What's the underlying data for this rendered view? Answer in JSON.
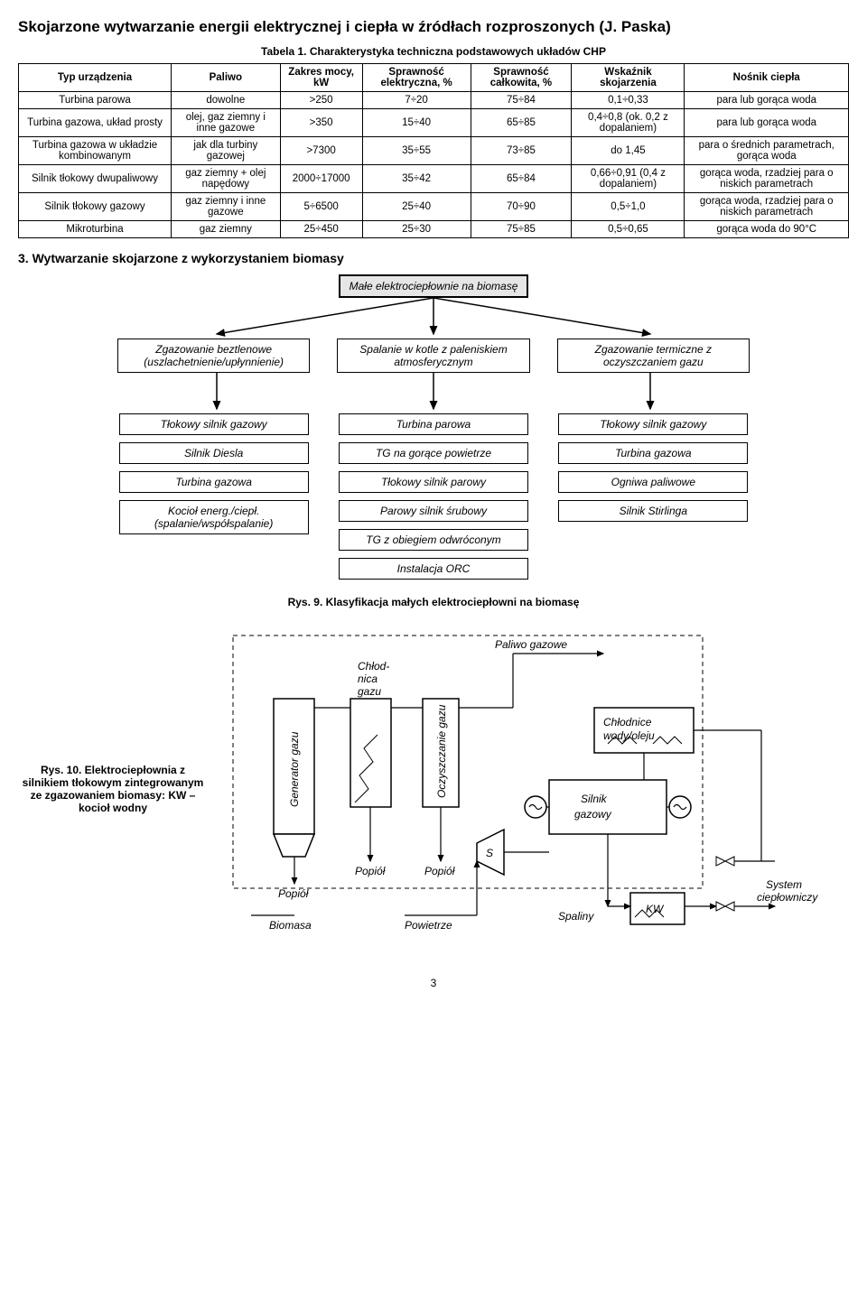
{
  "page": {
    "title": "Skojarzone wytwarzanie energii elektrycznej i ciepła w źródłach rozproszonych (J. Paska)",
    "section3": "3. Wytwarzanie skojarzone z wykorzystaniem biomasy",
    "pagenum": "3"
  },
  "table": {
    "caption": "Tabela 1. Charakterystyka techniczna podstawowych układów CHP",
    "headers": {
      "c1": "Typ urządzenia",
      "c2": "Paliwo",
      "c3": "Zakres mocy, kW",
      "c4": "Sprawność elektryczna, %",
      "c5": "Sprawność całkowita, %",
      "c6": "Wskaźnik skojarzenia",
      "c7": "Nośnik ciepła"
    },
    "rows": [
      {
        "c1": "Turbina parowa",
        "c2": "dowolne",
        "c3": ">250",
        "c4": "7÷20",
        "c5": "75÷84",
        "c6": "0,1÷0,33",
        "c7": "para lub gorąca woda"
      },
      {
        "c1": "Turbina gazowa, układ prosty",
        "c2": "olej, gaz ziemny i inne gazowe",
        "c3": ">350",
        "c4": "15÷40",
        "c5": "65÷85",
        "c6": "0,4÷0,8 (ok. 0,2 z dopalaniem)",
        "c7": "para lub gorąca woda"
      },
      {
        "c1": "Turbina gazowa w układzie kombinowanym",
        "c2": "jak dla turbiny gazowej",
        "c3": ">7300",
        "c4": "35÷55",
        "c5": "73÷85",
        "c6": "do 1,45",
        "c7": "para o średnich parametrach, gorąca woda"
      },
      {
        "c1": "Silnik tłokowy dwupaliwowy",
        "c2": "gaz ziemny + olej napędowy",
        "c3": "2000÷17000",
        "c4": "35÷42",
        "c5": "65÷84",
        "c6": "0,66÷0,91 (0,4 z dopalaniem)",
        "c7": "gorąca woda, rzadziej para o niskich parametrach"
      },
      {
        "c1": "Silnik tłokowy gazowy",
        "c2": "gaz ziemny i inne gazowe",
        "c3": "5÷6500",
        "c4": "25÷40",
        "c5": "70÷90",
        "c6": "0,5÷1,0",
        "c7": "gorąca woda, rzadziej para o niskich parametrach"
      },
      {
        "c1": "Mikroturbina",
        "c2": "gaz ziemny",
        "c3": "25÷450",
        "c4": "25÷30",
        "c5": "75÷85",
        "c6": "0,5÷0,65",
        "c7": "gorąca woda do 90°C"
      }
    ]
  },
  "fig9": {
    "caption": "Rys. 9. Klasyfikacja małych elektrociepłowni na biomasę",
    "top": "Małe elektrociepłownie na biomasę",
    "branch1": "Zgazowanie beztlenowe (uszlachetnienie/upłynnienie)",
    "branch2": "Spalanie w kotle z paleniskiem atmosferycznym",
    "branch3": "Zgazowanie termiczne z oczyszczaniem gazu",
    "col1": [
      "Tłokowy silnik gazowy",
      "Silnik Diesla",
      "Turbina gazowa",
      "Kocioł energ./ciepł. (spalanie/współspalanie)"
    ],
    "col2": [
      "Turbina parowa",
      "TG na gorące powietrze",
      "Tłokowy silnik parowy",
      "Parowy silnik śrubowy",
      "TG z obiegiem odwróconym",
      "Instalacja ORC"
    ],
    "col3": [
      "Tłokowy silnik gazowy",
      "Turbina gazowa",
      "Ogniwa paliwowe",
      "Silnik Stirlinga"
    ]
  },
  "fig10": {
    "caption": "Rys. 10. Elektrociepłownia z silnikiem tłokowym zintegrowanym ze zgazowaniem biomasy: KW – kocioł wodny",
    "labels": {
      "generator": "Generator gazu",
      "chlodnica": "Chłod-\nnica\ngazu",
      "oczyszczanie": "Oczyszczanie gazu",
      "paliwo": "Paliwo gazowe",
      "silnik": "Silnik gazowy",
      "chlodnice": "Chłodnice wody/oleju",
      "kw": "KW",
      "popiol1": "Popiół",
      "popiol2": "Popiół",
      "popiol3": "Popiół",
      "biomasa": "Biomasa",
      "powietrze": "Powietrze",
      "spaliny": "Spaliny",
      "s": "S",
      "system": "System ciepłowniczy"
    }
  }
}
